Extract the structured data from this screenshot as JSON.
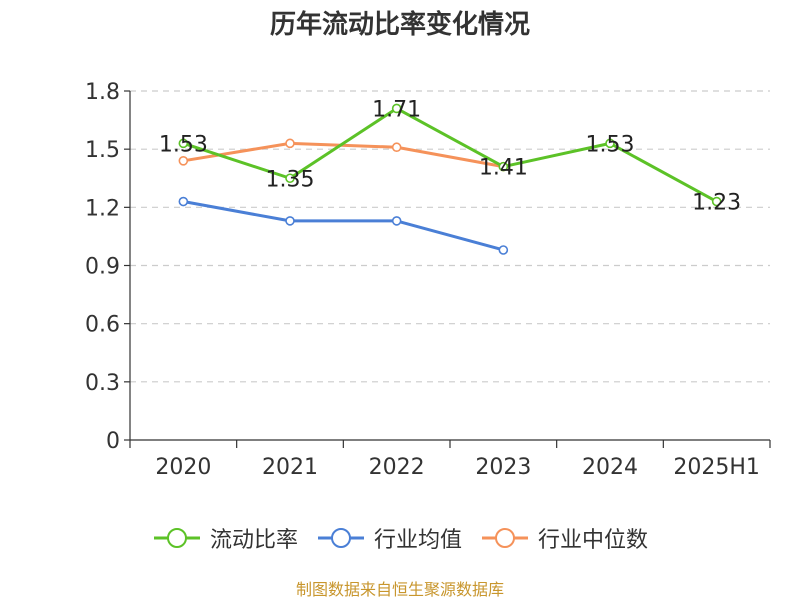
{
  "page": {
    "source_note": "制图数据来自恒生聚源数据库"
  },
  "chart_data": {
    "type": "line",
    "title": "历年流动比率变化情况",
    "xlabel": "",
    "ylabel": "",
    "categories": [
      "2020",
      "2021",
      "2022",
      "2023",
      "2024",
      "2025H1"
    ],
    "ylim": [
      0,
      1.8
    ],
    "yticks": [
      "0",
      "0.3",
      "0.6",
      "0.9",
      "1.2",
      "1.5",
      "1.8"
    ],
    "grid": "horizontal-dashed",
    "legend_position": "bottom",
    "series": [
      {
        "name": "流动比率",
        "color": "#5cc227",
        "values": [
          1.53,
          1.35,
          1.71,
          1.41,
          1.53,
          1.23
        ],
        "labels": [
          "1.53",
          "1.35",
          "1.71",
          "1.41",
          "1.53",
          "1.23"
        ]
      },
      {
        "name": "行业均值",
        "color": "#4a7fd6",
        "values": [
          1.23,
          1.13,
          1.13,
          0.98,
          null,
          null
        ]
      },
      {
        "name": "行业中位数",
        "color": "#f5925a",
        "values": [
          1.44,
          1.53,
          1.51,
          1.41,
          null,
          null
        ]
      }
    ]
  }
}
